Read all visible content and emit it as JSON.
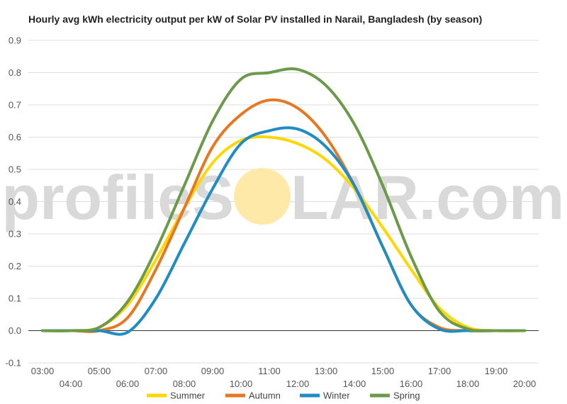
{
  "chart_data": {
    "type": "line",
    "title": "Hourly avg kWh electricity output per kW of Solar PV installed in Narail, Bangladesh (by season)",
    "xlabel": "",
    "ylabel": "",
    "ylim": [
      -0.1,
      0.9
    ],
    "xlim": [
      2.5,
      20.5
    ],
    "y_ticks": [
      -0.1,
      0.0,
      0.1,
      0.2,
      0.3,
      0.4,
      0.5,
      0.6,
      0.7,
      0.8,
      0.9
    ],
    "x_tick_labels": [
      "03:00",
      "04:00",
      "05:00",
      "06:00",
      "07:00",
      "08:00",
      "09:00",
      "10:00",
      "11:00",
      "12:00",
      "13:00",
      "14:00",
      "15:00",
      "16:00",
      "17:00",
      "18:00",
      "19:00",
      "20:00"
    ],
    "x_hours": [
      3,
      4,
      5,
      6,
      7,
      8,
      9,
      10,
      11,
      12,
      13,
      14,
      15,
      16,
      17,
      18,
      19,
      20
    ],
    "grid": true,
    "legend_position": "bottom",
    "series": [
      {
        "name": "Summer",
        "color": "#ffd700",
        "values": [
          0,
          0,
          0.01,
          0.08,
          0.22,
          0.38,
          0.52,
          0.59,
          0.6,
          0.58,
          0.53,
          0.44,
          0.32,
          0.19,
          0.07,
          0.01,
          0,
          0
        ]
      },
      {
        "name": "Autumn",
        "color": "#e87722",
        "values": [
          0,
          0,
          0,
          0.04,
          0.19,
          0.38,
          0.57,
          0.67,
          0.715,
          0.69,
          0.6,
          0.45,
          0.26,
          0.08,
          0.01,
          0,
          0,
          0
        ]
      },
      {
        "name": "Winter",
        "color": "#1f8dc1",
        "values": [
          0,
          0,
          0,
          -0.005,
          0.1,
          0.27,
          0.44,
          0.58,
          0.62,
          0.625,
          0.57,
          0.45,
          0.26,
          0.08,
          0.005,
          0,
          0,
          0
        ]
      },
      {
        "name": "Spring",
        "color": "#6b9a4b",
        "values": [
          0,
          0,
          0.01,
          0.09,
          0.25,
          0.45,
          0.65,
          0.78,
          0.8,
          0.81,
          0.76,
          0.64,
          0.45,
          0.23,
          0.06,
          0.005,
          0,
          0
        ]
      }
    ]
  },
  "watermark": {
    "left": "profileS",
    "right": "LAR.com",
    "sun_color": "#ffe9a8"
  }
}
